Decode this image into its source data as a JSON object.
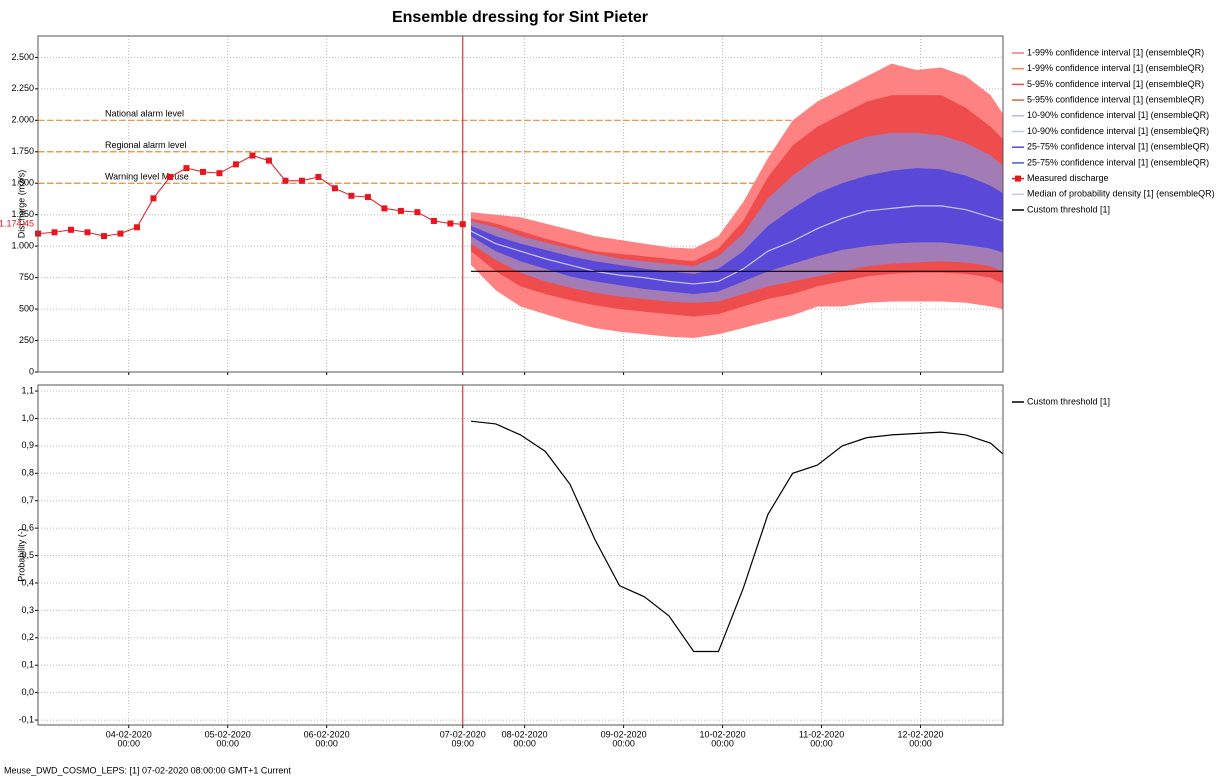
{
  "chart_data": [
    {
      "type": "line",
      "title": "Ensemble dressing for Sint Pieter",
      "ylabel": "Discharge (m3/s)",
      "xlim": [
        "03-02-2020 02:00",
        "12-02-2020 20:00"
      ],
      "ylim": [
        0,
        2670
      ],
      "yticks": [
        {
          "value": 0,
          "label": "0"
        },
        {
          "value": 250,
          "label": "250"
        },
        {
          "value": 500,
          "label": "500"
        },
        {
          "value": 750,
          "label": "750"
        },
        {
          "value": 1000,
          "label": "1.000"
        },
        {
          "value": 1250,
          "label": "1.250"
        },
        {
          "value": 1500,
          "label": "1.500"
        },
        {
          "value": 1750,
          "label": "1.750"
        },
        {
          "value": 2000,
          "label": "2.000"
        },
        {
          "value": 2250,
          "label": "2.250"
        },
        {
          "value": 2500,
          "label": "2.500"
        }
      ],
      "grid": true,
      "forecast_time": "07-02-2020 09:00",
      "annotation": {
        "value": 1174.45,
        "label": "1.174,45",
        "color": "#e8141e"
      },
      "reference_lines": [
        {
          "label": "National alarm level",
          "value": 2000,
          "color": "#f28c28"
        },
        {
          "label": "Regional alarm level",
          "value": 1750,
          "color": "#f28c28"
        },
        {
          "label": "Warning level Meuse",
          "value": 1500,
          "color": "#f28c28"
        }
      ],
      "x": [
        "07-02-2020 11:00",
        "07-02-2020 17:00",
        "07-02-2020 23:00",
        "08-02-2020 05:00",
        "08-02-2020 11:00",
        "08-02-2020 17:00",
        "08-02-2020 23:00",
        "09-02-2020 05:00",
        "09-02-2020 11:00",
        "09-02-2020 17:00",
        "09-02-2020 23:00",
        "10-02-2020 05:00",
        "10-02-2020 11:00",
        "10-02-2020 17:00",
        "10-02-2020 23:00",
        "11-02-2020 05:00",
        "11-02-2020 11:00",
        "11-02-2020 17:00",
        "11-02-2020 23:00",
        "12-02-2020 05:00",
        "12-02-2020 11:00",
        "12-02-2020 17:00",
        "12-02-2020 20:00"
      ],
      "series": [
        {
          "name": "1-99% confidence interval [1]  (ensembleQR)",
          "kind": "band-upper",
          "color": "#f47a7a",
          "fill": "#ff8282",
          "values": [
            1270,
            1250,
            1230,
            1180,
            1130,
            1080,
            1050,
            1020,
            990,
            980,
            1080,
            1350,
            1700,
            2000,
            2150,
            2250,
            2350,
            2450,
            2400,
            2420,
            2350,
            2200,
            2050
          ]
        },
        {
          "name": "1-99% confidence interval [1]  (ensembleQR)",
          "kind": "band-lower",
          "color": "#f08a50",
          "values": [
            850,
            650,
            520,
            460,
            400,
            350,
            320,
            300,
            280,
            270,
            300,
            350,
            400,
            450,
            520,
            520,
            550,
            560,
            560,
            560,
            550,
            520,
            500
          ]
        },
        {
          "name": "5-95% confidence interval [1]  (ensembleQR)",
          "kind": "band-upper",
          "color": "#e0504a",
          "fill": "#ef4d4d",
          "values": [
            1220,
            1180,
            1120,
            1060,
            1010,
            960,
            940,
            920,
            900,
            880,
            980,
            1200,
            1550,
            1800,
            1950,
            2050,
            2150,
            2200,
            2200,
            2200,
            2100,
            1950,
            1850
          ]
        },
        {
          "name": "5-95% confidence interval [1]  (ensembleQR)",
          "kind": "band-lower",
          "color": "#e06040",
          "values": [
            960,
            800,
            680,
            620,
            570,
            530,
            500,
            480,
            460,
            440,
            460,
            520,
            580,
            620,
            680,
            720,
            760,
            780,
            790,
            790,
            780,
            750,
            700
          ]
        },
        {
          "name": "10-90% confidence interval [1]  (ensembleQR)",
          "kind": "band-upper",
          "color": "#a8c0ec",
          "fill": "#a47cb5",
          "values": [
            1200,
            1150,
            1080,
            1030,
            980,
            940,
            900,
            880,
            860,
            840,
            920,
            1100,
            1380,
            1560,
            1700,
            1800,
            1870,
            1900,
            1900,
            1880,
            1820,
            1720,
            1640
          ]
        },
        {
          "name": "10-90% confidence interval [1]  (ensembleQR)",
          "kind": "band-lower",
          "color": "#b8c8f0",
          "values": [
            1020,
            890,
            790,
            720,
            670,
            630,
            600,
            580,
            560,
            550,
            560,
            620,
            680,
            720,
            760,
            800,
            840,
            860,
            870,
            880,
            870,
            840,
            800
          ]
        },
        {
          "name": "25-75% confidence interval [1]  (ensembleQR)",
          "kind": "band-upper",
          "color": "#5a48d8",
          "fill": "#5a48d8",
          "values": [
            1160,
            1080,
            1020,
            970,
            920,
            880,
            850,
            820,
            800,
            780,
            820,
            960,
            1160,
            1300,
            1420,
            1500,
            1560,
            1600,
            1620,
            1610,
            1560,
            1480,
            1420
          ]
        },
        {
          "name": "25-75% confidence interval [1]  (ensembleQR)",
          "kind": "band-lower",
          "color": "#4a58d0",
          "values": [
            1080,
            960,
            880,
            820,
            760,
            720,
            690,
            660,
            640,
            620,
            640,
            720,
            800,
            860,
            920,
            970,
            1000,
            1020,
            1030,
            1030,
            1010,
            980,
            950
          ]
        },
        {
          "name": "Measured discharge",
          "kind": "markers",
          "color": "#e8141e",
          "x": [
            "03-02-2020 02:00",
            "03-02-2020 06:00",
            "03-02-2020 10:00",
            "03-02-2020 14:00",
            "03-02-2020 18:00",
            "03-02-2020 22:00",
            "04-02-2020 02:00",
            "04-02-2020 06:00",
            "04-02-2020 10:00",
            "04-02-2020 14:00",
            "04-02-2020 18:00",
            "04-02-2020 22:00",
            "05-02-2020 02:00",
            "05-02-2020 06:00",
            "05-02-2020 10:00",
            "05-02-2020 14:00",
            "05-02-2020 18:00",
            "05-02-2020 22:00",
            "06-02-2020 02:00",
            "06-02-2020 06:00",
            "06-02-2020 10:00",
            "06-02-2020 14:00",
            "06-02-2020 18:00",
            "06-02-2020 22:00",
            "07-02-2020 02:00",
            "07-02-2020 06:00",
            "07-02-2020 09:00"
          ],
          "values": [
            1100,
            1110,
            1130,
            1110,
            1080,
            1100,
            1150,
            1380,
            1550,
            1620,
            1590,
            1580,
            1650,
            1720,
            1680,
            1520,
            1520,
            1550,
            1460,
            1400,
            1390,
            1300,
            1280,
            1270,
            1200,
            1180,
            1174.45
          ]
        },
        {
          "name": "Median of probability density [1]  (ensembleQR)",
          "kind": "line",
          "color": "#c8c8ec",
          "values": [
            1120,
            1020,
            960,
            900,
            850,
            800,
            770,
            750,
            720,
            700,
            720,
            820,
            960,
            1040,
            1140,
            1220,
            1280,
            1300,
            1320,
            1320,
            1290,
            1230,
            1200
          ]
        },
        {
          "name": "Custom threshold [1]",
          "kind": "line",
          "color": "#000000",
          "x": [
            "07-02-2020 11:00",
            "12-02-2020 20:00"
          ],
          "values": [
            800,
            800
          ]
        }
      ]
    },
    {
      "type": "line",
      "ylabel": "Probability (-)",
      "xlim": [
        "03-02-2020 02:00",
        "12-02-2020 20:00"
      ],
      "ylim": [
        -0.118,
        1.122
      ],
      "yticks": [
        {
          "value": -0.1,
          "label": "-0,1"
        },
        {
          "value": 0,
          "label": "0,0"
        },
        {
          "value": 0.1,
          "label": "0,1"
        },
        {
          "value": 0.2,
          "label": "0,2"
        },
        {
          "value": 0.3,
          "label": "0,3"
        },
        {
          "value": 0.4,
          "label": "0,4"
        },
        {
          "value": 0.5,
          "label": "0,5"
        },
        {
          "value": 0.6,
          "label": "0,6"
        },
        {
          "value": 0.7,
          "label": "0,7"
        },
        {
          "value": 0.8,
          "label": "0,8"
        },
        {
          "value": 0.9,
          "label": "0,9"
        },
        {
          "value": 1.0,
          "label": "1,0"
        },
        {
          "value": 1.1,
          "label": "1,1"
        }
      ],
      "xticks": [
        {
          "value": "04-02-2020 00:00",
          "label": [
            "04-02-2020",
            "00:00"
          ]
        },
        {
          "value": "05-02-2020 00:00",
          "label": [
            "05-02-2020",
            "00:00"
          ]
        },
        {
          "value": "06-02-2020 00:00",
          "label": [
            "06-02-2020",
            "00:00"
          ]
        },
        {
          "value": "07-02-2020 09:00",
          "label": [
            "07-02-2020",
            "09:00"
          ]
        },
        {
          "value": "08-02-2020 00:00",
          "label": [
            "08-02-2020",
            "00:00"
          ]
        },
        {
          "value": "09-02-2020 00:00",
          "label": [
            "09-02-2020",
            "00:00"
          ]
        },
        {
          "value": "10-02-2020 00:00",
          "label": [
            "10-02-2020",
            "00:00"
          ]
        },
        {
          "value": "11-02-2020 00:00",
          "label": [
            "11-02-2020",
            "00:00"
          ]
        },
        {
          "value": "12-02-2020 00:00",
          "label": [
            "12-02-2020",
            "00:00"
          ]
        }
      ],
      "grid": true,
      "series": [
        {
          "name": "Custom threshold [1]",
          "kind": "line",
          "color": "#000000",
          "x": [
            "07-02-2020 11:00",
            "07-02-2020 17:00",
            "07-02-2020 23:00",
            "08-02-2020 05:00",
            "08-02-2020 11:00",
            "08-02-2020 17:00",
            "08-02-2020 23:00",
            "09-02-2020 05:00",
            "09-02-2020 11:00",
            "09-02-2020 17:00",
            "09-02-2020 23:00",
            "10-02-2020 05:00",
            "10-02-2020 11:00",
            "10-02-2020 17:00",
            "10-02-2020 23:00",
            "11-02-2020 05:00",
            "11-02-2020 11:00",
            "11-02-2020 17:00",
            "11-02-2020 23:00",
            "12-02-2020 05:00",
            "12-02-2020 11:00",
            "12-02-2020 17:00",
            "12-02-2020 20:00"
          ],
          "values": [
            0.99,
            0.98,
            0.94,
            0.88,
            0.76,
            0.56,
            0.39,
            0.35,
            0.28,
            0.15,
            0.15,
            0.38,
            0.65,
            0.8,
            0.83,
            0.9,
            0.93,
            0.94,
            0.945,
            0.95,
            0.94,
            0.91,
            0.87
          ]
        }
      ]
    }
  ],
  "footer": "Meuse_DWD_COSMO_LEPS: [1] 07-02-2020 08:00:00 GMT+1 Current"
}
